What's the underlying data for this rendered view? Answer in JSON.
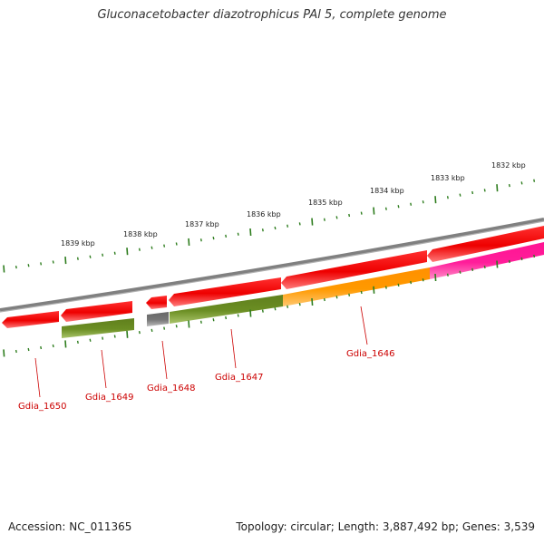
{
  "title": "Gluconacetobacter diazotrophicus PAl 5, complete genome",
  "footer": {
    "accession": "Accession: NC_011365",
    "summary": "Topology: circular; Length: 3,887,492 bp; Genes: 3,539"
  },
  "colors": {
    "backbone": "#808080",
    "forward_gene": "#ee0000",
    "cds_green": "#6b8e23",
    "cds_orange": "#ff9900",
    "cds_magenta": "#ff1493",
    "pseudo_gray": "#777777",
    "tick": "#2e7d1e",
    "gene_label": "#cc0000"
  },
  "ruler_labels": [
    "1839 kbp",
    "1838 kbp",
    "1837 kbp",
    "1836 kbp",
    "1835 kbp",
    "1834 kbp",
    "1833 kbp",
    "1832 kbp"
  ],
  "gene_labels": [
    "Gdia_1650",
    "Gdia_1649",
    "Gdia_1648",
    "Gdia_1647",
    "Gdia_1646"
  ]
}
